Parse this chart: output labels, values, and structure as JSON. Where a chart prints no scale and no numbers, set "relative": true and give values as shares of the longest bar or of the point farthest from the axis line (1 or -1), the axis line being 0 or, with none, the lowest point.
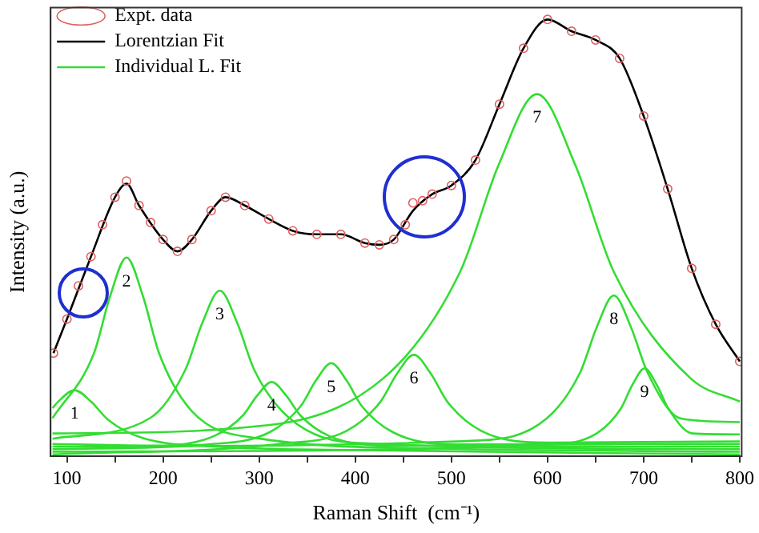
{
  "chart_data": {
    "type": "line",
    "relative": true,
    "xlabel": "Raman Shift  (cm⁻¹)",
    "ylabel": "Intensity (a.u.)",
    "xlim": [
      83,
      802
    ],
    "xticks": [
      100,
      {
        "value": 150,
        "label": null
      },
      200,
      {
        "value": 250,
        "label": null
      },
      300,
      {
        "value": 350,
        "label": null
      },
      400,
      {
        "value": 450,
        "label": null
      },
      500,
      {
        "value": 550,
        "label": null
      },
      600,
      {
        "value": 650,
        "label": null
      },
      700,
      {
        "value": 750,
        "label": null
      },
      800
    ],
    "legend": "top left",
    "grid": false,
    "series": [
      {
        "name": "Expt. data",
        "type": "scatter",
        "marker": "circle",
        "color": "#e06060",
        "x": [
          86,
          100,
          112,
          125,
          137,
          150,
          162,
          175,
          187,
          200,
          215,
          230,
          250,
          265,
          285,
          310,
          335,
          360,
          385,
          410,
          425,
          440,
          452,
          460,
          470,
          480,
          500,
          525,
          550,
          575,
          600,
          625,
          650,
          675,
          700,
          725,
          750,
          775,
          800
        ],
        "values": [
          0.236,
          0.314,
          0.39,
          0.457,
          0.53,
          0.593,
          0.63,
          0.574,
          0.535,
          0.496,
          0.469,
          0.496,
          0.562,
          0.593,
          0.574,
          0.543,
          0.516,
          0.508,
          0.508,
          0.488,
          0.484,
          0.496,
          0.53,
          0.58,
          0.585,
          0.6,
          0.62,
          0.678,
          0.806,
          0.934,
          1.0,
          0.973,
          0.953,
          0.911,
          0.779,
          0.612,
          0.43,
          0.302,
          0.217
        ]
      },
      {
        "name": "Lorentzian Fit",
        "color": "#000000",
        "x": [
          86,
          100,
          125,
          150,
          162,
          175,
          200,
          215,
          230,
          250,
          265,
          285,
          310,
          335,
          360,
          385,
          410,
          425,
          440,
          460,
          480,
          500,
          525,
          550,
          575,
          600,
          625,
          650,
          675,
          700,
          725,
          750,
          775,
          800
        ],
        "values": [
          0.236,
          0.314,
          0.457,
          0.593,
          0.624,
          0.574,
          0.496,
          0.469,
          0.496,
          0.562,
          0.593,
          0.574,
          0.543,
          0.516,
          0.508,
          0.508,
          0.488,
          0.484,
          0.496,
          0.562,
          0.6,
          0.62,
          0.678,
          0.806,
          0.934,
          1.0,
          0.973,
          0.953,
          0.911,
          0.779,
          0.612,
          0.43,
          0.302,
          0.217
        ]
      },
      {
        "name": "Individual L. Fit",
        "color": "#33dd33",
        "x": [
          85,
          90.5,
          108,
          125.5,
          143,
          178,
          248,
          400,
          800
        ],
        "values": [
          0.11,
          0.124,
          0.151,
          0.124,
          0.083,
          0.042,
          0.023,
          0.014,
          0.004
        ]
      },
      {
        "color": "#33dd33",
        "x": [
          85,
          128,
          145,
          162,
          179,
          196,
          230,
          298,
          500,
          800
        ],
        "values": [
          0.087,
          0.235,
          0.367,
          0.455,
          0.367,
          0.235,
          0.103,
          0.041,
          0.017,
          0.01
        ]
      },
      {
        "color": "#33dd33",
        "x": [
          85,
          187,
          223,
          241,
          259,
          277,
          295,
          331,
          403,
          800
        ],
        "values": [
          0.04,
          0.088,
          0.197,
          0.306,
          0.379,
          0.306,
          0.197,
          0.088,
          0.03,
          0.016
        ]
      },
      {
        "color": "#33dd33",
        "x": [
          85,
          193,
          253,
          283,
          298,
          313,
          328,
          343,
          373,
          433,
          800
        ],
        "values": [
          0.028,
          0.024,
          0.046,
          0.093,
          0.139,
          0.17,
          0.139,
          0.093,
          0.046,
          0.024,
          0.022
        ]
      },
      {
        "color": "#33dd33",
        "x": [
          85,
          247,
          311,
          343,
          359,
          375,
          391,
          407,
          439,
          503,
          800
        ],
        "values": [
          0.016,
          0.027,
          0.055,
          0.114,
          0.173,
          0.213,
          0.173,
          0.114,
          0.055,
          0.027,
          0.028
        ]
      },
      {
        "color": "#33dd33",
        "x": [
          85,
          321,
          391,
          426,
          443.5,
          461,
          478.5,
          496,
          531,
          601,
          800
        ],
        "values": [
          0.004,
          0.028,
          0.058,
          0.124,
          0.189,
          0.232,
          0.189,
          0.124,
          0.058,
          0.031,
          0.034
        ]
      },
      {
        "color": "#33dd33",
        "x": [
          85,
          269,
          429,
          509,
          549,
          589,
          629,
          669,
          749,
          800
        ],
        "values": [
          0.052,
          0.063,
          0.178,
          0.422,
          0.666,
          0.829,
          0.666,
          0.422,
          0.178,
          0.125
        ]
      },
      {
        "color": "#33dd33",
        "x": [
          85,
          529,
          599,
          634,
          651.5,
          669,
          686.5,
          704,
          739,
          800
        ],
        "values": [
          0.022,
          0.036,
          0.086,
          0.192,
          0.297,
          0.368,
          0.297,
          0.192,
          0.086,
          0.078
        ]
      },
      {
        "color": "#33dd33",
        "x": [
          85,
          601,
          651,
          676,
          688.5,
          701,
          713.5,
          726,
          751,
          800
        ],
        "values": [
          0.01,
          0.026,
          0.052,
          0.108,
          0.164,
          0.201,
          0.164,
          0.108,
          0.052,
          0.05
        ]
      }
    ],
    "annotations": [
      {
        "text": "1",
        "x": 108,
        "y": 0.151
      },
      {
        "text": "2",
        "x": 162,
        "y": 0.455
      },
      {
        "text": "3",
        "x": 259,
        "y": 0.379
      },
      {
        "text": "4",
        "x": 313,
        "y": 0.17
      },
      {
        "text": "5",
        "x": 375,
        "y": 0.213
      },
      {
        "text": "6",
        "x": 461,
        "y": 0.232
      },
      {
        "text": "7",
        "x": 589,
        "y": 0.829
      },
      {
        "text": "8",
        "x": 669,
        "y": 0.368
      },
      {
        "text": "9",
        "x": 701,
        "y": 0.201
      }
    ]
  }
}
